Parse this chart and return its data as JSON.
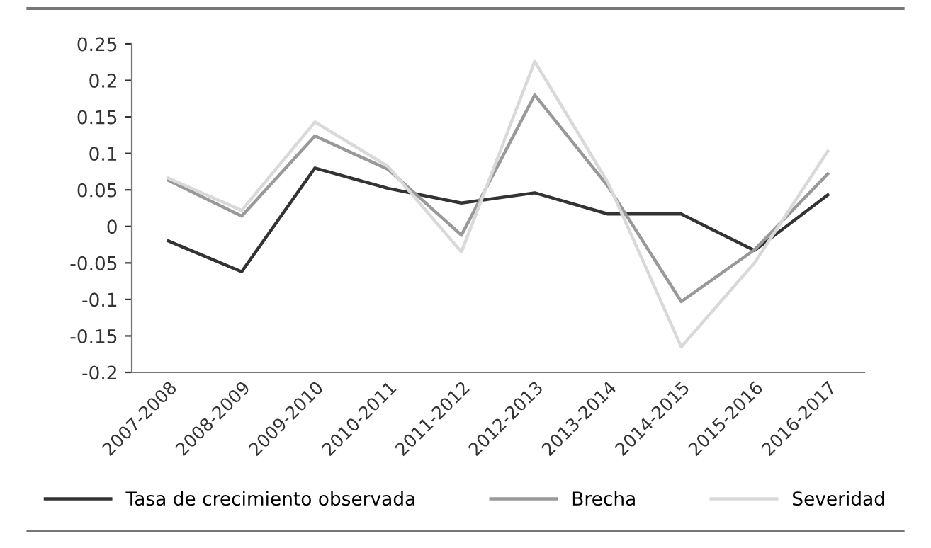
{
  "chart_data": {
    "type": "line",
    "categories": [
      "2007-2008",
      "2008-2009",
      "2009-2010",
      "2010-2011",
      "2011-2012",
      "2012-2013",
      "2013-2014",
      "2014-2015",
      "2015-2016",
      "2016-2017"
    ],
    "series": [
      {
        "name": "Tasa de crecimiento observada",
        "color": "#333333",
        "values": [
          -0.02,
          -0.062,
          0.08,
          0.052,
          0.032,
          0.046,
          0.017,
          0.017,
          -0.033,
          0.043
        ]
      },
      {
        "name": "Brecha",
        "color": "#999999",
        "values": [
          0.063,
          0.014,
          0.124,
          0.078,
          -0.012,
          0.18,
          0.055,
          -0.103,
          -0.032,
          0.072
        ]
      },
      {
        "name": "Severidad",
        "color": "#d9d9d9",
        "values": [
          0.066,
          0.022,
          0.143,
          0.082,
          -0.035,
          0.226,
          0.06,
          -0.165,
          -0.05,
          0.103
        ]
      }
    ],
    "ylim": [
      -0.2,
      0.25
    ],
    "yticks": [
      0.25,
      0.2,
      0.15,
      0.1,
      0.05,
      0,
      -0.05,
      -0.1,
      -0.15,
      -0.2
    ],
    "grid": false,
    "legend": "bottom",
    "marker": "none",
    "line_style": "solid"
  }
}
